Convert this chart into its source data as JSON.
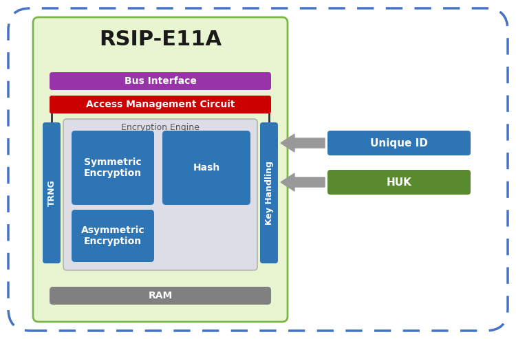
{
  "title": "RSIP-E11A",
  "bg_outer_color": "#ffffff",
  "bg_outer_border_color": "#4472c4",
  "bg_inner_color": "#e8f5d0",
  "bg_inner_border_color": "#7ab648",
  "bus_interface_color": "#9933aa",
  "bus_interface_text": "Bus Interface",
  "access_mgmt_color": "#cc0000",
  "access_mgmt_text": "Access Management Circuit",
  "enc_engine_bg": "#dddde8",
  "enc_engine_border": "#aaaaaa",
  "enc_engine_label": "Encryption Engine",
  "trng_color": "#2e75b6",
  "trng_text": "TRNG",
  "key_handling_color": "#2e75b6",
  "key_handling_text": "Key Handling",
  "sym_enc_color": "#2e75b6",
  "sym_enc_text": "Symmetric\nEncryption",
  "hash_color": "#2e75b6",
  "hash_text": "Hash",
  "asym_enc_color": "#2e75b6",
  "asym_enc_text": "Asymmetric\nEncryption",
  "ram_color": "#808080",
  "ram_text": "RAM",
  "unique_id_color": "#2e75b6",
  "unique_id_text": "Unique ID",
  "huk_color": "#5a8a2e",
  "huk_text": "HUK",
  "arrow_color": "#999999",
  "title_fontsize": 22,
  "figw": 7.5,
  "figh": 4.93,
  "dpi": 100
}
